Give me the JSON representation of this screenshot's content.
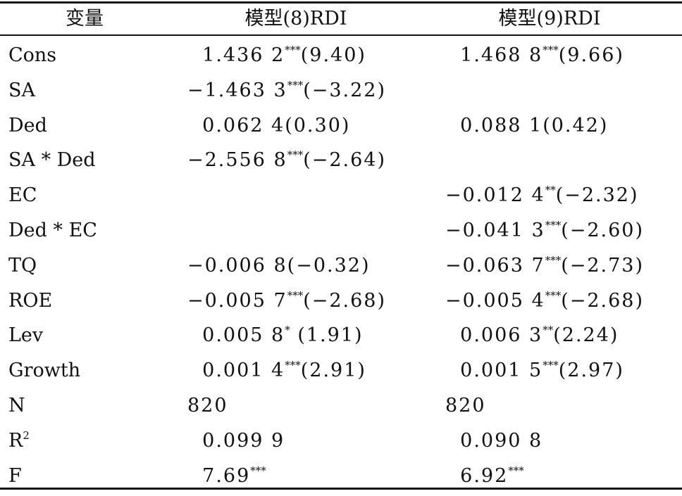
{
  "table": {
    "headers": [
      "变量",
      "模型(8)RDI",
      "模型(9)RDI"
    ],
    "rows": [
      {
        "variable": "Cons",
        "variable_sup": "",
        "m8": "  1.436 2",
        "m8_stars": "***",
        "m8_tail": "(9.40)",
        "m9": "  1.468 8",
        "m9_stars": "***",
        "m9_tail": "(9.66)"
      },
      {
        "variable": "SA",
        "variable_sup": "",
        "m8": "−1.463 3",
        "m8_stars": "***",
        "m8_tail": "(−3.22)",
        "m9": "",
        "m9_stars": "",
        "m9_tail": ""
      },
      {
        "variable": "Ded",
        "variable_sup": "",
        "m8": "  0.062 4(0.30)",
        "m8_stars": "",
        "m8_tail": "",
        "m9": "  0.088 1(0.42)",
        "m9_stars": "",
        "m9_tail": ""
      },
      {
        "variable": "SA * Ded",
        "variable_sup": "",
        "m8": "−2.556 8",
        "m8_stars": "***",
        "m8_tail": "(−2.64)",
        "m9": "",
        "m9_stars": "",
        "m9_tail": ""
      },
      {
        "variable": "EC",
        "variable_sup": "",
        "m8": "",
        "m8_stars": "",
        "m8_tail": "",
        "m9": "−0.012 4",
        "m9_stars": "**",
        "m9_tail": "(−2.32)"
      },
      {
        "variable": "Ded * EC",
        "variable_sup": "",
        "m8": "",
        "m8_stars": "",
        "m8_tail": "",
        "m9": "−0.041 3",
        "m9_stars": "***",
        "m9_tail": "(−2.60)"
      },
      {
        "variable": "TQ",
        "variable_sup": "",
        "m8": "−0.006 8(−0.32)",
        "m8_stars": "",
        "m8_tail": "",
        "m9": "−0.063 7",
        "m9_stars": "***",
        "m9_tail": "(−2.73)"
      },
      {
        "variable": "ROE",
        "variable_sup": "",
        "m8": "−0.005 7",
        "m8_stars": "***",
        "m8_tail": "(−2.68)",
        "m9": "−0.005 4",
        "m9_stars": "***",
        "m9_tail": "(−2.68)"
      },
      {
        "variable": "Lev",
        "variable_sup": "",
        "m8": "  0.005 8",
        "m8_stars": "*",
        "m8_tail": " (1.91)",
        "m9": "  0.006 3",
        "m9_stars": "**",
        "m9_tail": "(2.24)"
      },
      {
        "variable": "Growth",
        "variable_sup": "",
        "m8": "  0.001 4",
        "m8_stars": "***",
        "m8_tail": "(2.91)",
        "m9": "  0.001 5",
        "m9_stars": "***",
        "m9_tail": "(2.97)"
      },
      {
        "variable": "N",
        "variable_sup": "",
        "m8": "820",
        "m8_stars": "",
        "m8_tail": "",
        "m9": "820",
        "m9_stars": "",
        "m9_tail": ""
      },
      {
        "variable": "R",
        "variable_sup": "2",
        "m8": "  0.099 9",
        "m8_stars": "",
        "m8_tail": "",
        "m9": "  0.090 8",
        "m9_stars": "",
        "m9_tail": ""
      },
      {
        "variable": "F",
        "variable_sup": "",
        "m8": "  7.69",
        "m8_stars": "***",
        "m8_tail": "",
        "m9": "  6.92",
        "m9_stars": "***",
        "m9_tail": ""
      }
    ]
  }
}
